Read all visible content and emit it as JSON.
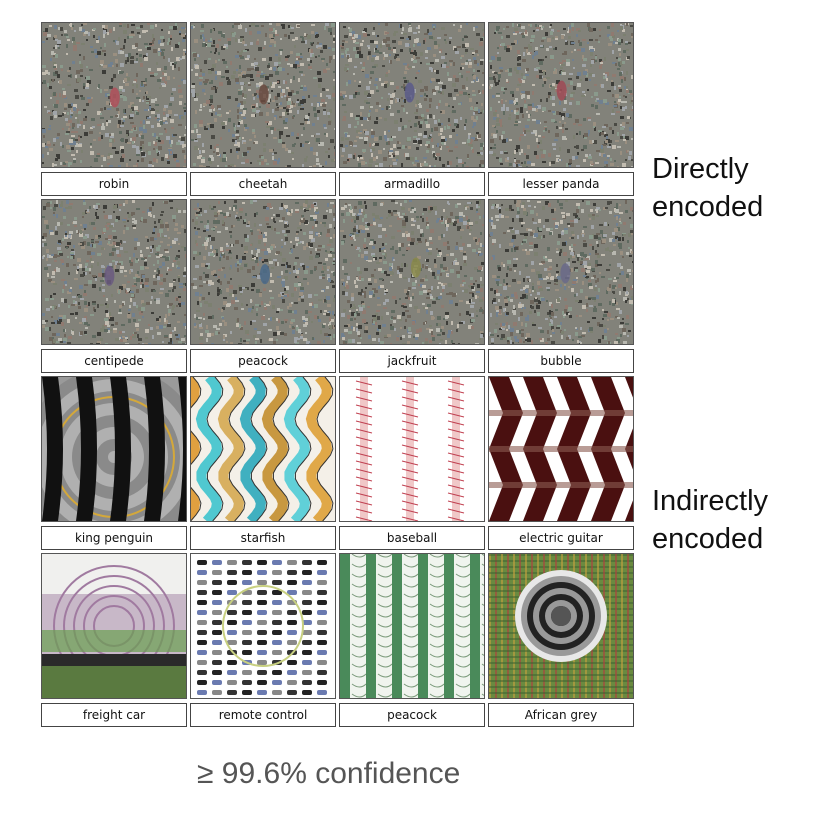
{
  "side_labels": {
    "direct": [
      "Directly",
      "encoded"
    ],
    "indirect": [
      "Indirectly",
      "encoded"
    ]
  },
  "footer": "≥ 99.6% confidence",
  "rows": [
    [
      {
        "label": "robin",
        "style": "noise",
        "blob": "#b0505a"
      },
      {
        "label": "cheetah",
        "style": "noise",
        "blob": "#6a4a40"
      },
      {
        "label": "armadillo",
        "style": "noise",
        "blob": "#5a5a8a"
      },
      {
        "label": "lesser panda",
        "style": "noise",
        "blob": "#a04a55"
      }
    ],
    [
      {
        "label": "centipede",
        "style": "noise",
        "blob": "#6a5a80"
      },
      {
        "label": "peacock",
        "style": "noise",
        "blob": "#4a6a8a"
      },
      {
        "label": "jackfruit",
        "style": "noise",
        "blob": "#8a8a4a"
      },
      {
        "label": "bubble",
        "style": "noise",
        "blob": "#6a6a8a"
      }
    ],
    [
      {
        "label": "king penguin",
        "style": "penguin"
      },
      {
        "label": "starfish",
        "style": "starfish"
      },
      {
        "label": "baseball",
        "style": "baseball"
      },
      {
        "label": "electric guitar",
        "style": "guitar"
      }
    ],
    [
      {
        "label": "freight car",
        "style": "freight"
      },
      {
        "label": "remote control",
        "style": "remote"
      },
      {
        "label": "peacock",
        "style": "peacock2"
      },
      {
        "label": "African grey",
        "style": "grey"
      }
    ]
  ]
}
